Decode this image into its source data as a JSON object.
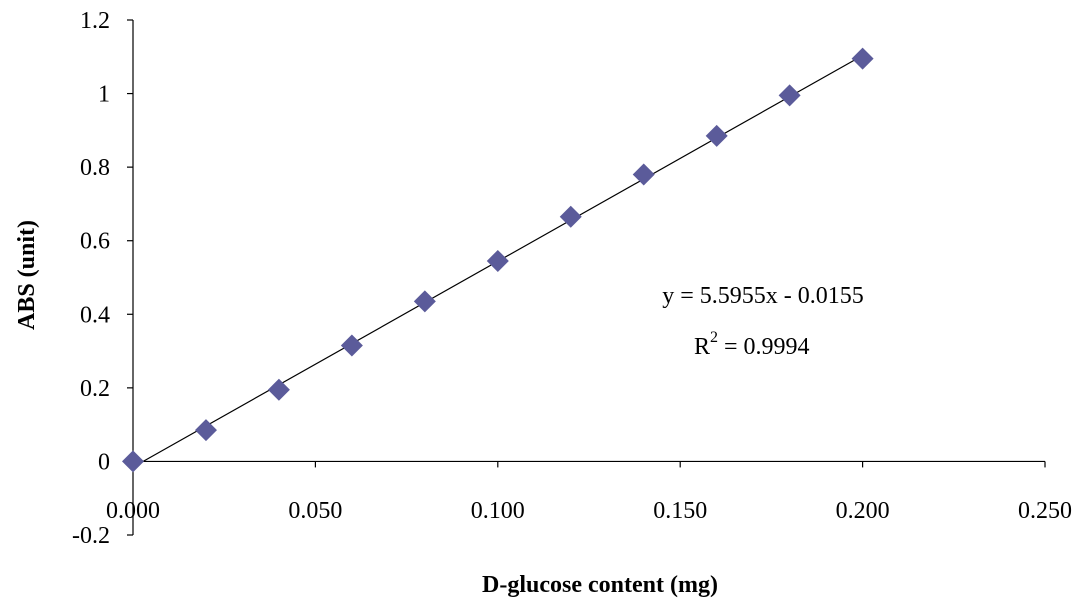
{
  "chart_data": {
    "type": "scatter",
    "title": "",
    "xlabel": "D-glucose content (mg)",
    "ylabel": "ABS (unit)",
    "xlim": [
      0,
      0.25
    ],
    "ylim": [
      -0.2,
      1.2
    ],
    "x_ticks": [
      0,
      0.05,
      0.1,
      0.15,
      0.2,
      0.25
    ],
    "x_tick_labels": [
      "0.000",
      "0.050",
      "0.100",
      "0.150",
      "0.200",
      "0.250"
    ],
    "y_ticks": [
      -0.2,
      0,
      0.2,
      0.4,
      0.6,
      0.8,
      1,
      1.2
    ],
    "y_tick_labels": [
      "-0.2",
      "0",
      "0.2",
      "0.4",
      "0.6",
      "0.8",
      "1",
      "1.2"
    ],
    "grid": false,
    "legend": "none",
    "series": [
      {
        "marker": "diamond",
        "color": "#5b5b9a",
        "x": [
          0.0,
          0.02,
          0.04,
          0.06,
          0.08,
          0.1,
          0.12,
          0.14,
          0.16,
          0.18,
          0.2
        ],
        "y": [
          0.0,
          0.085,
          0.195,
          0.315,
          0.435,
          0.545,
          0.665,
          0.78,
          0.885,
          0.995,
          1.095
        ]
      }
    ],
    "trendline": {
      "slope": 5.5955,
      "intercept": -0.0155,
      "color": "#000000",
      "x_range": [
        0.0,
        0.2
      ]
    },
    "annotations": {
      "equation_label": "y = 5.5955x - 0.0155",
      "r2_prefix": "R",
      "r2_superscript": "2",
      "r2_value_text": " = 0.9994"
    }
  }
}
